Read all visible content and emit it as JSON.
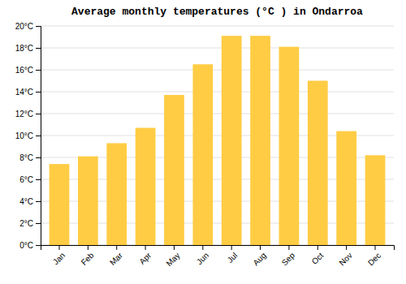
{
  "chart_data": {
    "type": "bar",
    "title": "Average monthly temperatures (°C ) in Ondarroa",
    "categories": [
      "Jan",
      "Feb",
      "Mar",
      "Apr",
      "May",
      "Jun",
      "Jul",
      "Aug",
      "Sep",
      "Oct",
      "Nov",
      "Dec"
    ],
    "values": [
      7.4,
      8.1,
      9.3,
      10.7,
      13.7,
      16.5,
      19.1,
      19.1,
      18.1,
      15.0,
      10.4,
      8.2
    ],
    "color": "#FFCC44",
    "ylim": [
      0,
      20
    ],
    "yticks": [
      {
        "value": 0,
        "label": "0°C"
      },
      {
        "value": 2,
        "label": "2°C"
      },
      {
        "value": 4,
        "label": "4°C"
      },
      {
        "value": 6,
        "label": "6°C"
      },
      {
        "value": 8,
        "label": "8°C"
      },
      {
        "value": 10,
        "label": "10°C"
      },
      {
        "value": 12,
        "label": "12°C"
      },
      {
        "value": 14,
        "label": "14°C"
      },
      {
        "value": 16,
        "label": "16°C"
      },
      {
        "value": 18,
        "label": "18°C"
      },
      {
        "value": 20,
        "label": "20°C"
      }
    ],
    "grid": true
  }
}
